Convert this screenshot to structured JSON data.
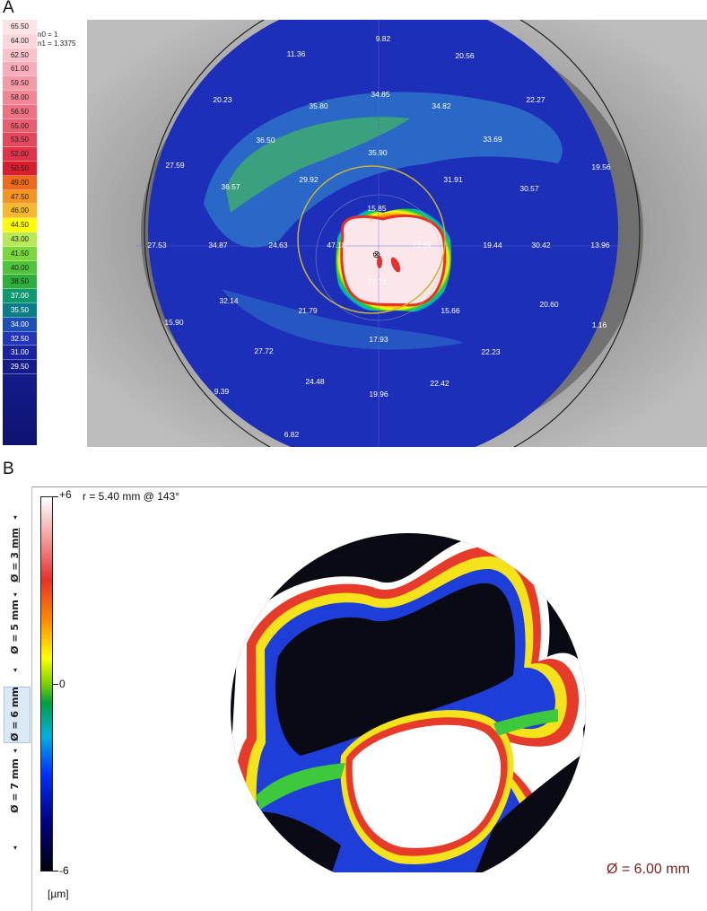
{
  "panel_a": {
    "letter": "A",
    "scale_values": [
      "65.50",
      "64.00",
      "62.50",
      "61.00",
      "59.50",
      "58.00",
      "56.50",
      "55.00",
      "53.50",
      "52.00",
      "50.50",
      "49.00",
      "47.50",
      "46.00",
      "44.50",
      "43.00",
      "41.50",
      "40.00",
      "38.50",
      "37.00",
      "35.50",
      "34.00",
      "32.50",
      "31.00",
      "29.50"
    ],
    "scale_colors": [
      "#fde2e6",
      "#fcd6dc",
      "#fbc2ca",
      "#f9adb8",
      "#f699a6",
      "#f38595",
      "#ef7183",
      "#ea5c6f",
      "#e5475c",
      "#e0334a",
      "#d91f2c",
      "#f06a1c",
      "#f59423",
      "#f7b92b",
      "#ffff00",
      "#b7eb56",
      "#7ad83b",
      "#4fc43a",
      "#2eae3c",
      "#0e9a6e",
      "#0a7d89",
      "#1e4fb8",
      "#2335b8",
      "#1a239e",
      "#141b8a"
    ],
    "refractive_index": {
      "n0": "n0 = 1",
      "n1": "n1 = 1.3375"
    },
    "point_values": [
      {
        "text": "9.82"
      },
      {
        "text": "11.36"
      },
      {
        "text": "20.56"
      },
      {
        "text": "20.23"
      },
      {
        "text": "34.85"
      },
      {
        "text": "22.27"
      },
      {
        "text": "35.80"
      },
      {
        "text": "34.82"
      },
      {
        "text": "36.50"
      },
      {
        "text": "35.90"
      },
      {
        "text": "33.69"
      },
      {
        "text": "27.59"
      },
      {
        "text": "19.56"
      },
      {
        "text": "36.57"
      },
      {
        "text": "29.92"
      },
      {
        "text": "31.91"
      },
      {
        "text": "30.57"
      },
      {
        "text": "15.85"
      },
      {
        "text": "27.53"
      },
      {
        "text": "34.87"
      },
      {
        "text": "24.63"
      },
      {
        "text": "47.18"
      },
      {
        "text": "73.69"
      },
      {
        "text": "19.44"
      },
      {
        "text": "30.42"
      },
      {
        "text": "13.96"
      },
      {
        "text": "77.74"
      },
      {
        "text": "32.14"
      },
      {
        "text": "21.79"
      },
      {
        "text": "15.66"
      },
      {
        "text": "20.60"
      },
      {
        "text": "15.90"
      },
      {
        "text": "1.16"
      },
      {
        "text": "17.93"
      },
      {
        "text": "27.72"
      },
      {
        "text": "22.23"
      },
      {
        "text": "9.39"
      },
      {
        "text": "24.48"
      },
      {
        "text": "19.96"
      },
      {
        "text": "22.42"
      },
      {
        "text": "6.82"
      }
    ]
  },
  "panel_b": {
    "letter": "B",
    "diameter_options": [
      {
        "label": "Ø = 3 mm",
        "selected": false
      },
      {
        "label": "Ø = 5 mm",
        "selected": false
      },
      {
        "label": "Ø = 6 mm",
        "selected": true
      },
      {
        "label": "Ø = 7 mm",
        "selected": false
      }
    ],
    "colorbar": {
      "max": "+6",
      "mid": "0",
      "min": "-6",
      "unit": "[µm]"
    },
    "cursor_readout": "r = 5.40 mm @ 143°",
    "diameter_display": "Ø = 6.00 mm"
  }
}
